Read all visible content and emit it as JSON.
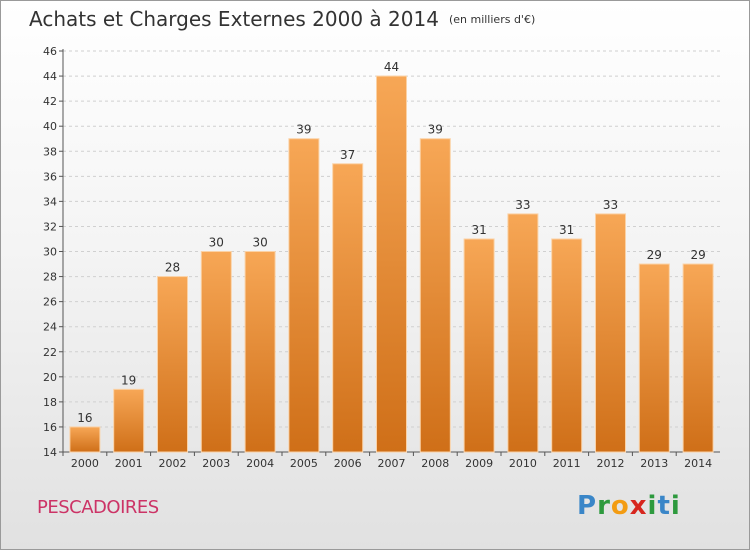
{
  "title": "Achats et Charges Externes 2000 à 2014",
  "unit": "(en milliers d'€)",
  "commune": "PESCADOIRES",
  "logo": {
    "letters": [
      "P",
      "r",
      "o",
      "x",
      "i",
      "t",
      "i"
    ]
  },
  "chart_data": {
    "type": "bar",
    "title": "Achats et Charges Externes 2000 à 2014",
    "subtitle": "(en milliers d'€)",
    "xlabel": "",
    "ylabel": "",
    "categories": [
      "2000",
      "2001",
      "2002",
      "2003",
      "2004",
      "2005",
      "2006",
      "2007",
      "2008",
      "2009",
      "2010",
      "2011",
      "2012",
      "2013",
      "2014"
    ],
    "values": [
      16,
      19,
      28,
      30,
      30,
      39,
      37,
      44,
      39,
      31,
      33,
      31,
      33,
      29,
      29
    ],
    "ylim": [
      14,
      46
    ],
    "yticks": [
      14,
      16,
      18,
      20,
      22,
      24,
      26,
      28,
      30,
      32,
      34,
      36,
      38,
      40,
      42,
      44,
      46
    ],
    "grid": true,
    "bar_color": "#f39c3c"
  }
}
